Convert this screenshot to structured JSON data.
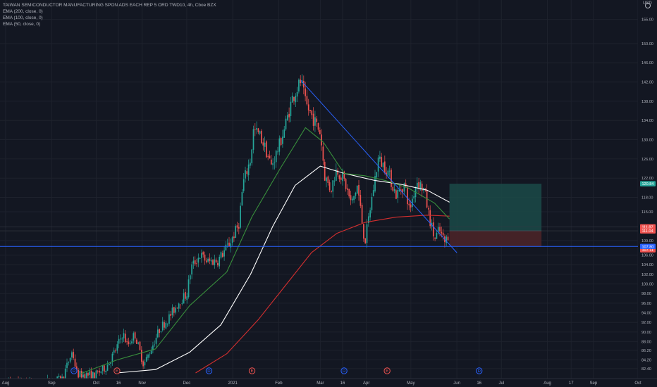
{
  "legend": {
    "title": "TAIWAN SEMICONDUCTOR MANUFACTURING SPON ADS EACH REP 5 ORD TWD10, 4h, Cboe BZX",
    "ema200": "EMA (200, close, 0)",
    "ema100": "EMA (100, close, 0)",
    "ema50": "EMA (50, close, 0)"
  },
  "currency": "USD",
  "colors": {
    "background": "#131722",
    "up": "#26a69a",
    "down": "#ef5350",
    "grid": "#1e222d",
    "ema200": "#d32f2f",
    "ema100": "#ffffff",
    "ema50": "#388e3c",
    "trendline": "#2962ff",
    "support": "#2962ff",
    "profit_zone": "#1b4a48",
    "loss_zone": "#4a2328"
  },
  "chart_data": {
    "type": "candlestick",
    "symbol": "TSM",
    "timeframe": "4h",
    "x_ticks": [
      "Aug",
      "Sep",
      "Oct",
      "16",
      "Nov",
      "Dec",
      "2021",
      "Feb",
      "Mar",
      "16",
      "Apr",
      "May",
      "Jun",
      "16",
      "Jul",
      "Aug",
      "17",
      "Sep",
      "Oct"
    ],
    "y_ticks": [
      "155.00",
      "150.00",
      "146.00",
      "142.00",
      "138.00",
      "134.00",
      "130.00",
      "126.00",
      "122.00",
      "118.00",
      "115.00",
      "109.00",
      "106.00",
      "104.00",
      "102.00",
      "100.00",
      "98.00",
      "96.00",
      "94.00",
      "92.00",
      "90.00",
      "88.00",
      "86.20",
      "84.20",
      "82.40"
    ],
    "ylim": [
      81.5,
      157
    ],
    "price_labels": [
      {
        "text": "120.84",
        "value": 120.84,
        "color": "#26a69a"
      },
      {
        "text": "111.87",
        "value": 111.87,
        "color": "#ef5350"
      },
      {
        "text": "111.04",
        "value": 111.04,
        "color": "#ef5350"
      },
      {
        "text": "107.11",
        "value": 107.11,
        "color": "#ef5350"
      },
      {
        "text": "107.80",
        "value": 107.8,
        "color": "#2962ff"
      }
    ],
    "events": [
      {
        "type": "D",
        "date": "2020-09-16"
      },
      {
        "type": "E",
        "date": "2020-10-15"
      },
      {
        "type": "D",
        "date": "2020-12-16"
      },
      {
        "type": "E",
        "date": "2021-01-14"
      },
      {
        "type": "D",
        "date": "2021-03-17"
      },
      {
        "type": "E",
        "date": "2021-04-15"
      },
      {
        "type": "D",
        "date": "2021-06-16"
      }
    ],
    "trendline": [
      {
        "date": "2021-02-16",
        "value": 142.3
      },
      {
        "date": "2021-06-01",
        "value": 106.5
      }
    ],
    "support_level": 107.8,
    "position": {
      "start": "2021-05-27",
      "end": "2021-07-28",
      "entry": 111.04,
      "target": 120.84,
      "stop": 107.8
    },
    "ema50_points": [
      [
        "2020-09-21",
        81.4
      ],
      [
        "2020-10-15",
        84.2
      ],
      [
        "2020-11-10",
        86.5
      ],
      [
        "2020-12-03",
        95.5
      ],
      [
        "2020-12-28",
        102.5
      ],
      [
        "2021-01-14",
        114
      ],
      [
        "2021-02-02",
        124
      ],
      [
        "2021-02-19",
        132.5
      ],
      [
        "2021-03-03",
        129.5
      ],
      [
        "2021-03-17",
        123
      ],
      [
        "2021-03-31",
        122.5
      ],
      [
        "2021-04-14",
        121.5
      ],
      [
        "2021-04-29",
        120
      ],
      [
        "2021-05-17",
        116.8
      ],
      [
        "2021-05-27",
        113.5
      ]
    ],
    "ema100_points": [
      [
        "2020-10-15",
        81.5
      ],
      [
        "2020-11-10",
        82.2
      ],
      [
        "2020-12-03",
        85.8
      ],
      [
        "2020-12-24",
        91.5
      ],
      [
        "2021-01-13",
        102
      ],
      [
        "2021-01-28",
        112
      ],
      [
        "2021-02-12",
        120.5
      ],
      [
        "2021-03-01",
        124.5
      ],
      [
        "2021-03-17",
        123
      ],
      [
        "2021-04-07",
        121.5
      ],
      [
        "2021-04-23",
        120.8
      ],
      [
        "2021-05-12",
        119.5
      ],
      [
        "2021-05-27",
        117
      ]
    ],
    "ema200_points": [
      [
        "2020-12-07",
        81.5
      ],
      [
        "2020-12-28",
        85.5
      ],
      [
        "2021-01-18",
        92.5
      ],
      [
        "2021-02-05",
        99.5
      ],
      [
        "2021-02-23",
        106.5
      ],
      [
        "2021-03-12",
        110.5
      ],
      [
        "2021-03-31",
        112.8
      ],
      [
        "2021-04-21",
        113.9
      ],
      [
        "2021-05-12",
        114.3
      ],
      [
        "2021-05-27",
        114.1
      ]
    ],
    "price_path": [
      [
        "2020-08-03",
        79.6
      ],
      [
        "2020-08-24",
        79.4
      ],
      [
        "2020-09-08",
        80.2
      ],
      [
        "2020-09-15",
        86
      ],
      [
        "2020-09-18",
        81.2
      ],
      [
        "2020-09-30",
        81
      ],
      [
        "2020-10-08",
        82.8
      ],
      [
        "2020-10-14",
        86.2
      ],
      [
        "2020-10-19",
        89.8
      ],
      [
        "2020-10-22",
        87.2
      ],
      [
        "2020-10-27",
        89.6
      ],
      [
        "2020-11-02",
        83.2
      ],
      [
        "2020-11-06",
        85.8
      ],
      [
        "2020-11-13",
        90.8
      ],
      [
        "2020-11-19",
        93
      ],
      [
        "2020-11-26",
        96.4
      ],
      [
        "2020-12-01",
        97.8
      ],
      [
        "2020-12-04",
        103.5
      ],
      [
        "2020-12-10",
        106
      ],
      [
        "2020-12-15",
        104.6
      ],
      [
        "2020-12-22",
        104.9
      ],
      [
        "2020-12-30",
        108.5
      ],
      [
        "2021-01-05",
        112.3
      ],
      [
        "2021-01-08",
        121
      ],
      [
        "2021-01-13",
        126
      ],
      [
        "2021-01-15",
        132
      ],
      [
        "2021-01-19",
        131
      ],
      [
        "2021-01-22",
        129
      ],
      [
        "2021-01-27",
        124.5
      ],
      [
        "2021-02-01",
        128.5
      ],
      [
        "2021-02-05",
        132.5
      ],
      [
        "2021-02-10",
        138.5
      ],
      [
        "2021-02-16",
        142.3
      ],
      [
        "2021-02-19",
        137.5
      ],
      [
        "2021-02-24",
        134.5
      ],
      [
        "2021-03-01",
        131.5
      ],
      [
        "2021-03-04",
        122.5
      ],
      [
        "2021-03-08",
        119.5
      ],
      [
        "2021-03-12",
        124
      ],
      [
        "2021-03-17",
        121.5
      ],
      [
        "2021-03-22",
        116.5
      ],
      [
        "2021-03-26",
        120.5
      ],
      [
        "2021-03-31",
        108.5
      ],
      [
        "2021-04-05",
        118.5
      ],
      [
        "2021-04-09",
        126
      ],
      [
        "2021-04-15",
        123.8
      ],
      [
        "2021-04-21",
        118.5
      ],
      [
        "2021-04-27",
        120.8
      ],
      [
        "2021-04-30",
        115.2
      ],
      [
        "2021-05-05",
        121.5
      ],
      [
        "2021-05-10",
        119.5
      ],
      [
        "2021-05-13",
        114.5
      ],
      [
        "2021-05-17",
        109.2
      ],
      [
        "2021-05-20",
        111.2
      ],
      [
        "2021-05-24",
        108.5
      ],
      [
        "2021-05-27",
        111.04
      ]
    ]
  }
}
